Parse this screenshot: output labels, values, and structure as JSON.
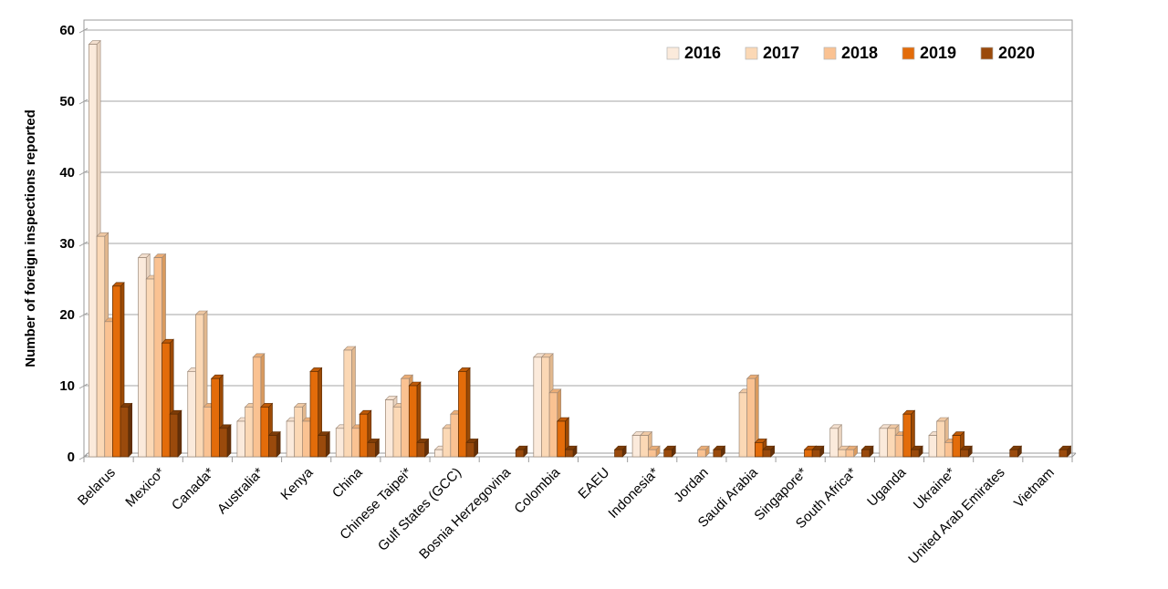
{
  "chart_data": {
    "type": "bar",
    "title": "",
    "ylabel": "Number of foreign inspections reported",
    "xlabel": "",
    "ylim": [
      0,
      60
    ],
    "yticks": [
      0,
      10,
      20,
      30,
      40,
      50,
      60
    ],
    "grid": true,
    "legend_position": "top-right-inside",
    "categories": [
      "Belarus",
      "Mexico*",
      "Canada*",
      "Australia*",
      "Kenya",
      "China",
      "Chinese Taipei*",
      "Gulf States (GCC)",
      "Bosnia Herzegovina",
      "Colombia",
      "EAEU",
      "Indonesia*",
      "Jordan",
      "Saudi Arabia",
      "Singapore*",
      "South Africa*",
      "Uganda",
      "Ukraine*",
      "United Arab Emirates",
      "Vietnam"
    ],
    "series": [
      {
        "name": "2016",
        "color": "#FBEADB",
        "color_top": "#F3DFCE",
        "color_side": "#E9D3BF",
        "values": [
          58,
          28,
          12,
          5,
          5,
          4,
          8,
          1,
          0,
          14,
          0,
          3,
          0,
          0,
          0,
          4,
          4,
          3,
          0,
          0
        ]
      },
      {
        "name": "2017",
        "color": "#FBD8B5",
        "color_top": "#F0C9A4",
        "color_side": "#E2B88E",
        "values": [
          31,
          25,
          20,
          7,
          7,
          15,
          7,
          4,
          0,
          14,
          0,
          3,
          0,
          9,
          0,
          1,
          4,
          5,
          0,
          0
        ]
      },
      {
        "name": "2018",
        "color": "#FAC292",
        "color_top": "#EBAD76",
        "color_side": "#D99A5E",
        "values": [
          19,
          28,
          7,
          14,
          5,
          4,
          11,
          6,
          0,
          9,
          0,
          1,
          1,
          11,
          0,
          1,
          3,
          2,
          0,
          0
        ]
      },
      {
        "name": "2019",
        "color": "#E36C0A",
        "color_top": "#C05B08",
        "color_side": "#9C4A05",
        "values": [
          24,
          16,
          11,
          7,
          12,
          6,
          10,
          12,
          0,
          5,
          0,
          0,
          0,
          2,
          1,
          0,
          6,
          3,
          0,
          0
        ]
      },
      {
        "name": "2020",
        "color": "#9A4A0C",
        "color_top": "#7D3C08",
        "color_side": "#63300A",
        "values": [
          7,
          6,
          4,
          3,
          3,
          2,
          2,
          2,
          1,
          1,
          1,
          1,
          1,
          1,
          1,
          1,
          1,
          1,
          1,
          1
        ]
      }
    ],
    "axis_colors": {
      "gridline": "#A6A6A6",
      "frame": "#9B9B9B",
      "text": "#000000"
    }
  }
}
